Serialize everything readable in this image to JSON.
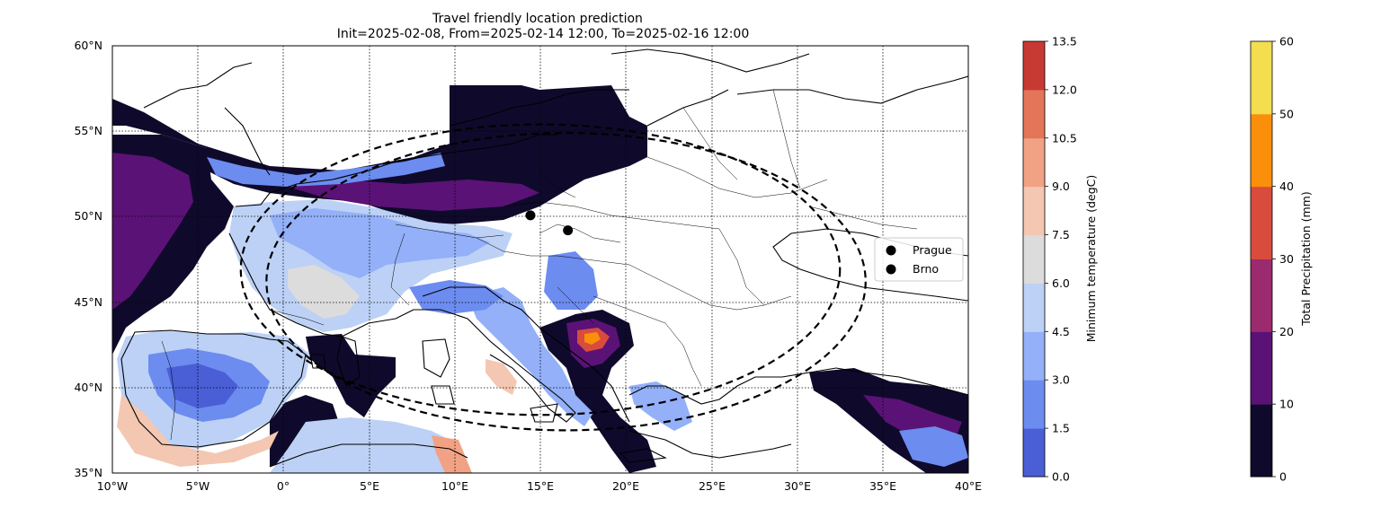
{
  "title": {
    "line1": "Travel friendly location prediction",
    "line2": "Init=2025-02-08, From=2025-02-14 12:00, To=2025-02-16 12:00"
  },
  "map": {
    "lon_range": [
      -10,
      40
    ],
    "lat_range": [
      35,
      60
    ],
    "lon_ticks": [
      {
        "value": -10,
        "label": "10°W"
      },
      {
        "value": -5,
        "label": "5°W"
      },
      {
        "value": 0,
        "label": "0°"
      },
      {
        "value": 5,
        "label": "5°E"
      },
      {
        "value": 10,
        "label": "10°E"
      },
      {
        "value": 15,
        "label": "15°E"
      },
      {
        "value": 20,
        "label": "20°E"
      },
      {
        "value": 25,
        "label": "25°E"
      },
      {
        "value": 30,
        "label": "30°E"
      },
      {
        "value": 35,
        "label": "35°E"
      },
      {
        "value": 40,
        "label": "40°E"
      }
    ],
    "lat_ticks": [
      {
        "value": 35,
        "label": "35°N"
      },
      {
        "value": 40,
        "label": "40°N"
      },
      {
        "value": 45,
        "label": "45°N"
      },
      {
        "value": 50,
        "label": "50°N"
      },
      {
        "value": 55,
        "label": "55°N"
      },
      {
        "value": 60,
        "label": "60°N"
      }
    ],
    "gridlines": "dotted",
    "locations": [
      {
        "name": "Prague",
        "lon": 14.42,
        "lat": 50.08
      },
      {
        "name": "Brno",
        "lon": 16.61,
        "lat": 49.2
      }
    ],
    "range_circles": [
      {
        "center_lon": 15.0,
        "center_lat": 46.9,
        "radius_lon": 17.5,
        "radius_lat": 8.5
      },
      {
        "center_lon": 16.5,
        "center_lat": 46.2,
        "radius_lon": 17.5,
        "radius_lat": 8.7
      }
    ]
  },
  "legend": {
    "placement": "right",
    "items": [
      "Prague",
      "Brno"
    ]
  },
  "colorbar_temperature": {
    "label": "Minimum temperature (degC)",
    "levels": [
      "0.0",
      "1.5",
      "3.0",
      "4.5",
      "6.0",
      "7.5",
      "9.0",
      "10.5",
      "12.0",
      "13.5"
    ],
    "colors": [
      "#4a5fd6",
      "#6c8cf0",
      "#93b0f8",
      "#bcd1f5",
      "#dcdcdc",
      "#f3c7b2",
      "#f2a284",
      "#e47558",
      "#c73a33"
    ]
  },
  "colorbar_precipitation": {
    "label": "Total Precipitation (mm)",
    "levels": [
      "0",
      "10",
      "20",
      "30",
      "40",
      "50",
      "60"
    ],
    "colors": [
      "#0f0a2b",
      "#5b1276",
      "#9c2a6e",
      "#d94b3d",
      "#f98f0a",
      "#f4dd4f"
    ]
  }
}
